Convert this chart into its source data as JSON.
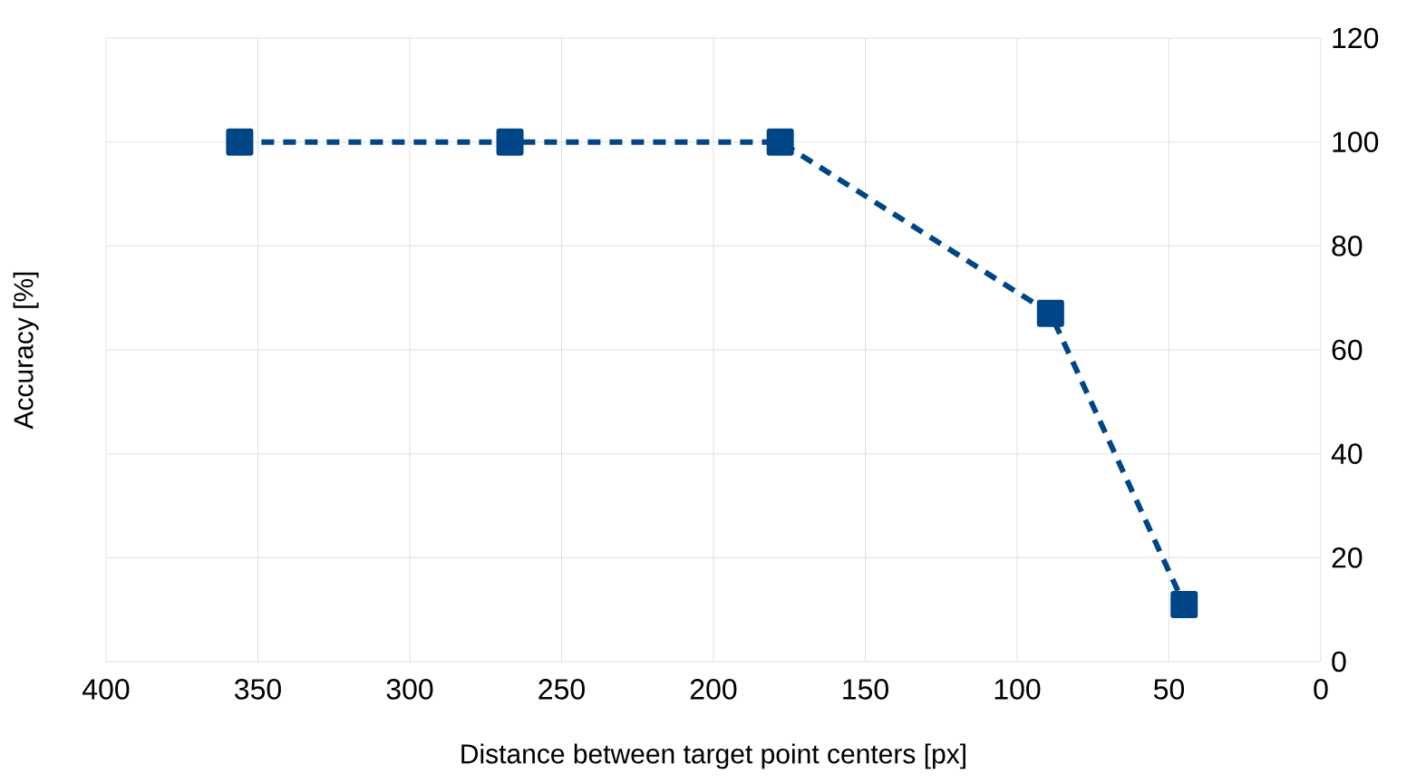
{
  "chart_data": {
    "type": "line",
    "xlabel": "Distance between target point centers [px]",
    "ylabel": "Accuracy [%]",
    "x": [
      356,
      267,
      178,
      89,
      45
    ],
    "series": [
      {
        "color": "#004586",
        "values": [
          100,
          100,
          100,
          67,
          11
        ]
      }
    ],
    "xlim": [
      400,
      0
    ],
    "xticks": [
      400,
      350,
      300,
      250,
      200,
      150,
      100,
      50,
      0
    ],
    "ylim": [
      0,
      120
    ],
    "yticks": [
      0,
      20,
      40,
      60,
      80,
      100,
      120
    ],
    "grid": true,
    "marker": "square",
    "line_style": "dashed"
  }
}
